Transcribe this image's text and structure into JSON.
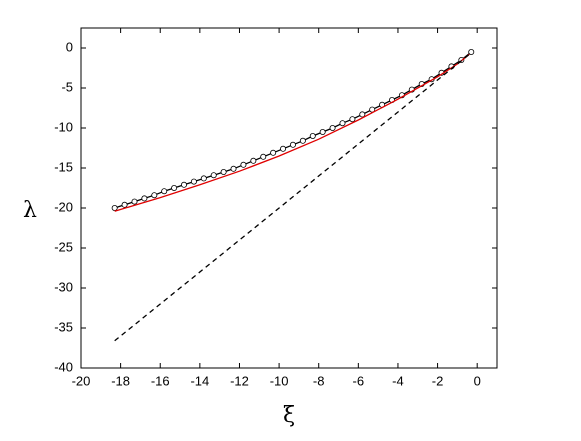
{
  "chart_data": {
    "type": "line",
    "xlabel": "ξ",
    "ylabel": "λ",
    "xlim": [
      -20,
      1
    ],
    "ylim": [
      -40,
      2.5
    ],
    "xticks": [
      -20,
      -18,
      -16,
      -14,
      -12,
      -10,
      -8,
      -6,
      -4,
      -2,
      0
    ],
    "yticks": [
      -40,
      -35,
      -30,
      -25,
      -20,
      -15,
      -10,
      -5,
      0
    ],
    "grid": false,
    "series": [
      {
        "color": "#000000",
        "marker": "circle",
        "dash": "solid",
        "x": [
          -18.3,
          -17.8,
          -17.3,
          -16.8,
          -16.3,
          -15.8,
          -15.3,
          -14.8,
          -14.3,
          -13.8,
          -13.3,
          -12.8,
          -12.3,
          -11.8,
          -11.3,
          -10.8,
          -10.3,
          -9.8,
          -9.3,
          -8.8,
          -8.3,
          -7.8,
          -7.3,
          -6.8,
          -6.3,
          -5.8,
          -5.3,
          -4.8,
          -4.3,
          -3.8,
          -3.3,
          -2.8,
          -2.3,
          -1.8,
          -1.3,
          -0.8,
          -0.3
        ],
        "values": [
          -20.0,
          -19.6,
          -19.2,
          -18.8,
          -18.4,
          -17.9,
          -17.5,
          -17.1,
          -16.7,
          -16.3,
          -15.9,
          -15.5,
          -15.1,
          -14.6,
          -14.1,
          -13.6,
          -13.1,
          -12.6,
          -12.1,
          -11.6,
          -11.0,
          -10.5,
          -10.0,
          -9.4,
          -8.9,
          -8.3,
          -7.7,
          -7.1,
          -6.5,
          -5.9,
          -5.2,
          -4.5,
          -3.9,
          -3.1,
          -2.3,
          -1.5,
          -0.5
        ]
      },
      {
        "color": "#e00000",
        "marker": "none",
        "dash": "solid",
        "x": [
          -18.3,
          -16,
          -14,
          -12,
          -10,
          -8,
          -6,
          -4,
          -2,
          -1,
          -0.4
        ],
        "values": [
          -20.4,
          -18.7,
          -17.1,
          -15.4,
          -13.5,
          -11.4,
          -9.0,
          -6.4,
          -3.6,
          -2.0,
          -0.8
        ]
      },
      {
        "color": "#000000",
        "marker": "none",
        "dash": "dashed",
        "x": [
          -18.3,
          -0.4
        ],
        "values": [
          -36.6,
          -0.8
        ]
      }
    ]
  }
}
